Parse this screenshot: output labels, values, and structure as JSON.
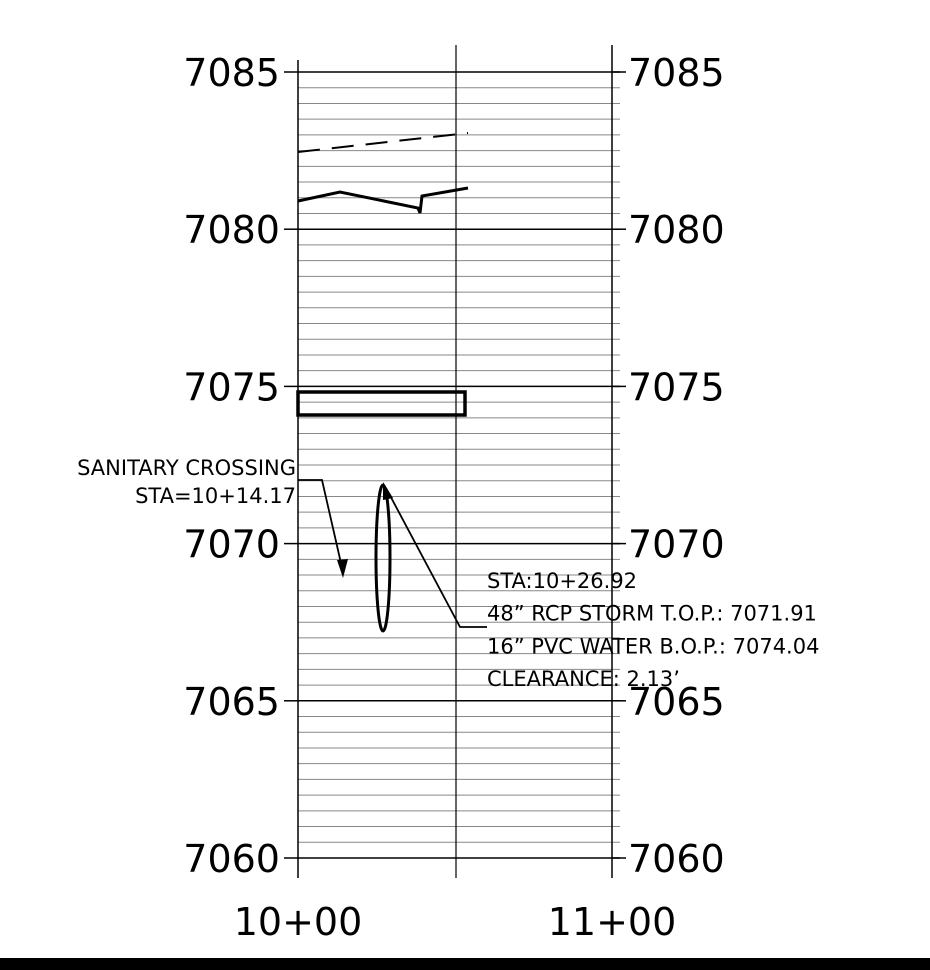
{
  "elevations": [
    "7085",
    "7080",
    "7075",
    "7070",
    "7065",
    "7060"
  ],
  "stations": [
    "10+00",
    "11+00"
  ],
  "sanitary": {
    "title": "SANITARY CROSSING",
    "station": "STA=10+14.17"
  },
  "crossing": {
    "lines": [
      "STA:10+26.92",
      "48” RCP STORM T.O.P.: 7071.91",
      "16” PVC WATER B.O.P.: 7074.04",
      "CLEARANCE: 2.13’"
    ]
  }
}
